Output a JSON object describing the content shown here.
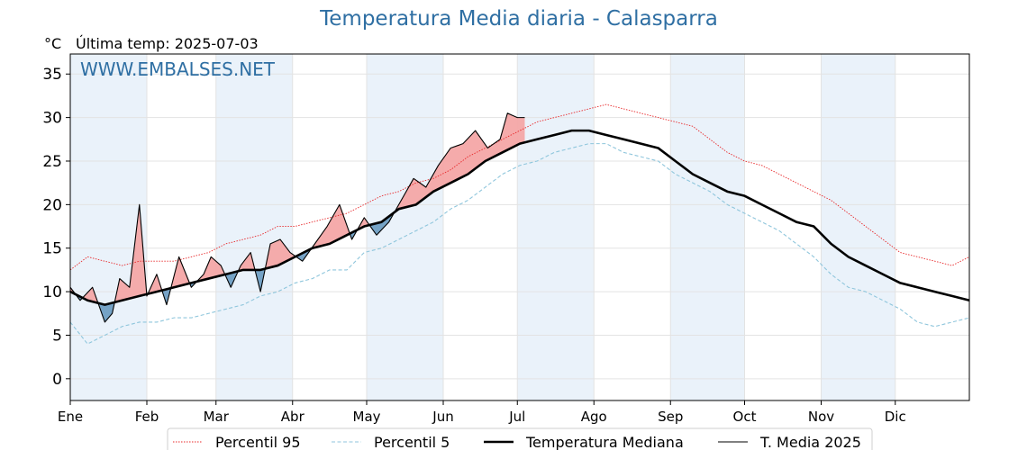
{
  "title": "Temperatura Media diaria - Calasparra",
  "unit_label": "°C",
  "last_temp": "Última temp: 2025-07-03",
  "watermark": "WWW.EMBALSES.NET",
  "colors": {
    "title": "#2f6fa3",
    "p95": "#e8282a",
    "p5": "#8fc6dc",
    "median": "#000000",
    "series2025": "#000000",
    "above_fill": "#f4a6a6",
    "below_fill": "#6f9ec3",
    "shade": "#eaf2fa"
  },
  "chart_data": {
    "type": "line",
    "x_axis": {
      "unit": "day_of_year",
      "range": [
        1,
        365
      ],
      "tick_labels": [
        "Ene",
        "Feb",
        "Mar",
        "Abr",
        "May",
        "Jun",
        "Jul",
        "Ago",
        "Sep",
        "Oct",
        "Nov",
        "Dic"
      ],
      "tick_days": [
        1,
        32,
        60,
        91,
        121,
        152,
        182,
        213,
        244,
        274,
        305,
        335
      ]
    },
    "y_axis": {
      "ylabel": "°C",
      "range": [
        -2.5,
        37.3
      ],
      "ticks": [
        0,
        5,
        10,
        15,
        20,
        25,
        30,
        35
      ]
    },
    "grid": true,
    "legend_position": "bottom",
    "shading": "alternate-months",
    "fill_between": {
      "series": "T. Media 2025",
      "reference": "Temperatura Mediana",
      "above_color": "#f4a6a6",
      "below_color": "#6f9ec3"
    },
    "series": [
      {
        "name": "Percentil 95",
        "style": "dotted",
        "color": "#e8282a",
        "x": [
          1,
          8,
          15,
          22,
          29,
          36,
          43,
          50,
          57,
          64,
          71,
          78,
          85,
          92,
          99,
          106,
          113,
          120,
          127,
          134,
          141,
          148,
          155,
          162,
          169,
          176,
          183,
          190,
          197,
          204,
          211,
          218,
          225,
          232,
          239,
          246,
          253,
          260,
          267,
          274,
          281,
          288,
          295,
          302,
          309,
          316,
          323,
          330,
          337,
          344,
          351,
          358,
          365
        ],
        "y": [
          12.5,
          14.0,
          13.5,
          13.0,
          13.5,
          13.5,
          13.5,
          14.0,
          14.5,
          15.5,
          16.0,
          16.5,
          17.5,
          17.5,
          18.0,
          18.5,
          19.0,
          20.0,
          21.0,
          21.5,
          22.5,
          23.0,
          24.0,
          25.5,
          26.5,
          27.5,
          28.5,
          29.5,
          30.0,
          30.5,
          31.0,
          31.5,
          31.0,
          30.5,
          30.0,
          29.5,
          29.0,
          27.5,
          26.0,
          25.0,
          24.5,
          23.5,
          22.5,
          21.5,
          20.5,
          19.0,
          17.5,
          16.0,
          14.5,
          14.0,
          13.5,
          13.0,
          14.0
        ]
      },
      {
        "name": "Percentil 5",
        "style": "dashed",
        "color": "#8fc6dc",
        "x": [
          1,
          8,
          15,
          22,
          29,
          36,
          43,
          50,
          57,
          64,
          71,
          78,
          85,
          92,
          99,
          106,
          113,
          120,
          127,
          134,
          141,
          148,
          155,
          162,
          169,
          176,
          183,
          190,
          197,
          204,
          211,
          218,
          225,
          232,
          239,
          246,
          253,
          260,
          267,
          274,
          281,
          288,
          295,
          302,
          309,
          316,
          323,
          330,
          337,
          344,
          351,
          358,
          365
        ],
        "y": [
          6.5,
          4.0,
          5.0,
          6.0,
          6.5,
          6.5,
          7.0,
          7.0,
          7.5,
          8.0,
          8.5,
          9.5,
          10.0,
          11.0,
          11.5,
          12.5,
          12.5,
          14.5,
          15.0,
          16.0,
          17.0,
          18.0,
          19.5,
          20.5,
          22.0,
          23.5,
          24.5,
          25.0,
          26.0,
          26.5,
          27.0,
          27.0,
          26.0,
          25.5,
          25.0,
          23.5,
          22.5,
          21.5,
          20.0,
          19.0,
          18.0,
          17.0,
          15.5,
          14.0,
          12.0,
          10.5,
          10.0,
          9.0,
          8.0,
          6.5,
          6.0,
          6.5,
          7.0
        ]
      },
      {
        "name": "Temperatura Mediana",
        "style": "solid-thick",
        "color": "#000000",
        "x": [
          1,
          8,
          15,
          22,
          29,
          36,
          43,
          50,
          57,
          64,
          71,
          78,
          85,
          92,
          99,
          106,
          113,
          120,
          127,
          134,
          141,
          148,
          155,
          162,
          169,
          176,
          183,
          190,
          197,
          204,
          211,
          218,
          225,
          232,
          239,
          246,
          253,
          260,
          267,
          274,
          281,
          288,
          295,
          302,
          309,
          316,
          323,
          330,
          337,
          344,
          351,
          358,
          365
        ],
        "y": [
          10.0,
          9.0,
          8.5,
          9.0,
          9.5,
          10.0,
          10.5,
          11.0,
          11.5,
          12.0,
          12.5,
          12.5,
          13.0,
          14.0,
          15.0,
          15.5,
          16.5,
          17.5,
          18.0,
          19.5,
          20.0,
          21.5,
          22.5,
          23.5,
          25.0,
          26.0,
          27.0,
          27.5,
          28.0,
          28.5,
          28.5,
          28.0,
          27.5,
          27.0,
          26.5,
          25.0,
          23.5,
          22.5,
          21.5,
          21.0,
          20.0,
          19.0,
          18.0,
          17.5,
          15.5,
          14.0,
          13.0,
          12.0,
          11.0,
          10.5,
          10.0,
          9.5,
          9.0
        ]
      },
      {
        "name": "T. Media 2025",
        "style": "solid-thin",
        "color": "#000000",
        "x": [
          1,
          5,
          10,
          15,
          18,
          21,
          25,
          29,
          32,
          36,
          40,
          45,
          50,
          55,
          58,
          62,
          66,
          70,
          74,
          78,
          82,
          86,
          90,
          95,
          100,
          105,
          110,
          115,
          120,
          125,
          130,
          135,
          140,
          145,
          150,
          155,
          160,
          165,
          170,
          175,
          178,
          182,
          185
        ],
        "y": [
          10.5,
          9.0,
          10.5,
          6.5,
          7.5,
          11.5,
          10.5,
          20.0,
          9.5,
          12.0,
          8.5,
          14.0,
          10.5,
          12.0,
          14.0,
          13.0,
          10.5,
          13.0,
          14.5,
          10.0,
          15.5,
          16.0,
          14.5,
          13.5,
          15.5,
          17.5,
          20.0,
          16.0,
          18.5,
          16.5,
          18.0,
          20.5,
          23.0,
          22.0,
          24.5,
          26.5,
          27.0,
          28.5,
          26.5,
          27.5,
          30.5,
          30.0,
          30.0
        ]
      }
    ]
  }
}
